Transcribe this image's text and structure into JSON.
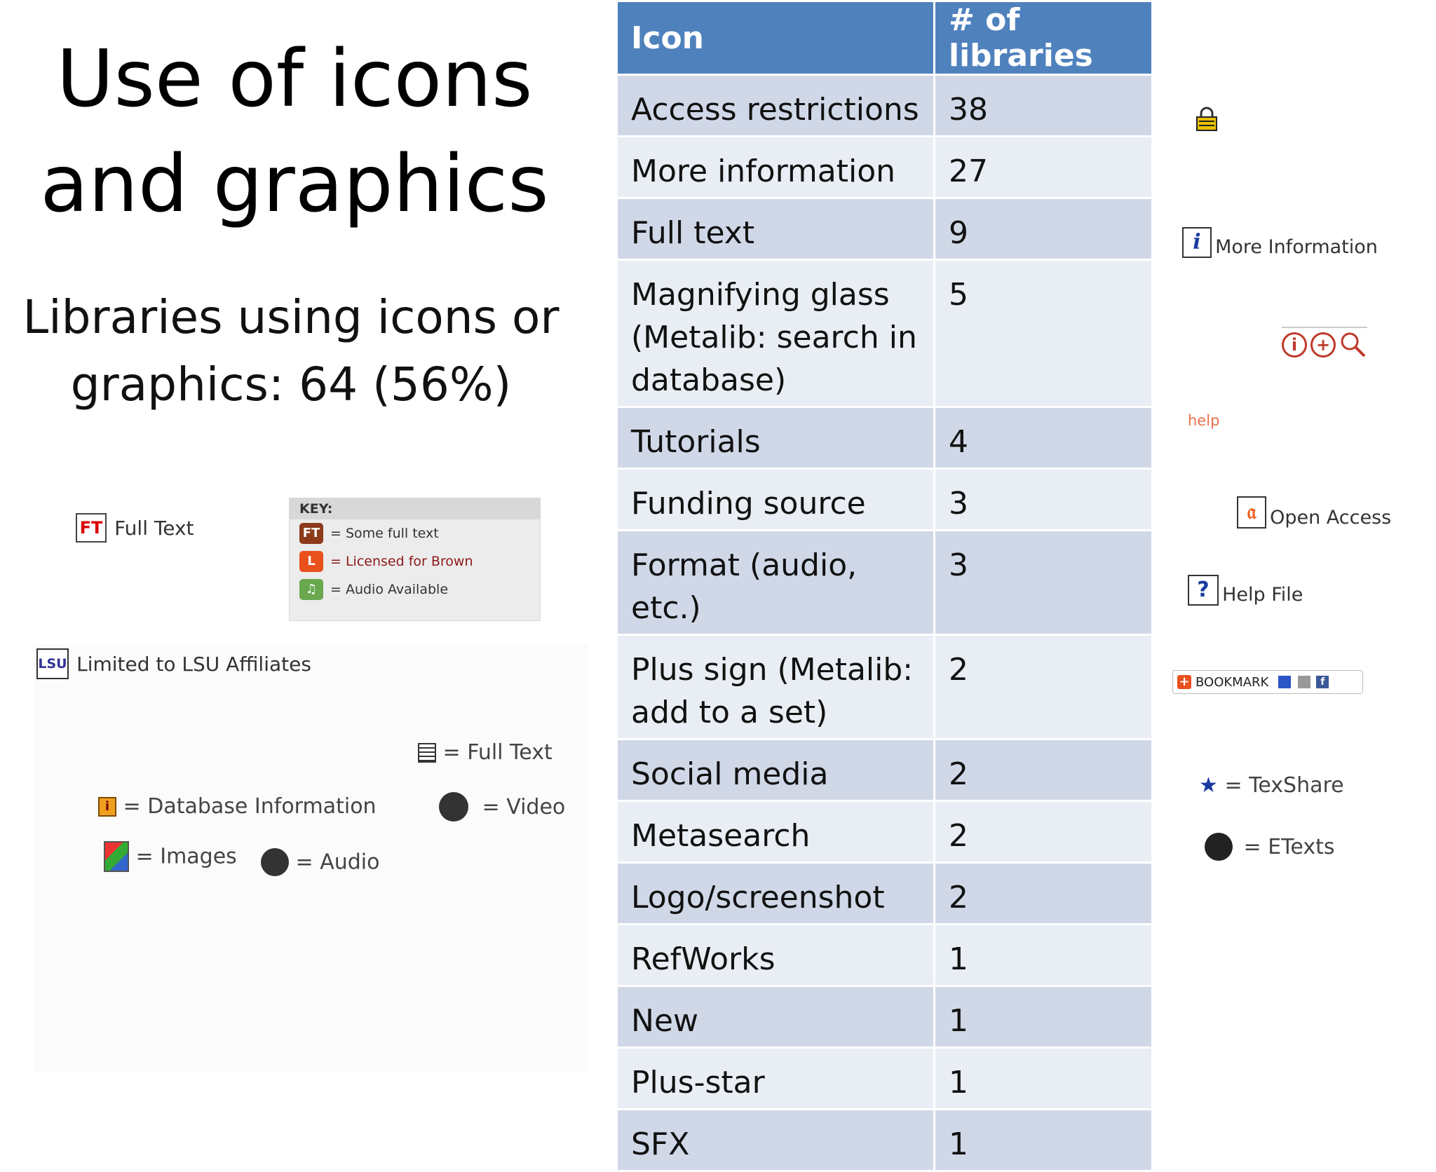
{
  "slide": {
    "title": "Use of icons and graphics",
    "subtitle": "Libraries using icons or graphics: 64 (56%)"
  },
  "table": {
    "headers": [
      "Icon",
      "# of libraries"
    ],
    "rows": [
      {
        "icon": "Access restrictions",
        "count": "38"
      },
      {
        "icon": "More information",
        "count": "27"
      },
      {
        "icon": "Full text",
        "count": "9"
      },
      {
        "icon": "Magnifying glass (Metalib: search in database)",
        "count": "5"
      },
      {
        "icon": "Tutorials",
        "count": "4"
      },
      {
        "icon": "Funding source",
        "count": "3"
      },
      {
        "icon": "Format (audio, etc.)",
        "count": "3"
      },
      {
        "icon": "Plus sign (Metalib: add to a set)",
        "count": "2"
      },
      {
        "icon": "Social media",
        "count": "2"
      },
      {
        "icon": "Metasearch",
        "count": "2"
      },
      {
        "icon": "Logo/screenshot",
        "count": "2"
      },
      {
        "icon": "RefWorks",
        "count": "1"
      },
      {
        "icon": "New",
        "count": "1"
      },
      {
        "icon": "Plus-star",
        "count": "1"
      },
      {
        "icon": "SFX",
        "count": "1"
      }
    ]
  },
  "examples_left": {
    "ft_icon_text": "FT",
    "ft_label": "Full Text",
    "key_title": "KEY:",
    "key_items": [
      {
        "badge": "FT",
        "label": "= Some full text",
        "color": "#8b3a1a"
      },
      {
        "badge": "L",
        "label": "= Licensed for Brown",
        "color": "#e8501c"
      },
      {
        "badge": "♫",
        "label": "= Audio Available",
        "color": "#6aa84f"
      }
    ],
    "lsu_icon_text": "LSU",
    "lsu_label": "Limited to LSU Affiliates",
    "fulltext_label": "= Full Text",
    "dbinfo_label": "= Database Information",
    "video_label": "= Video",
    "images_label": "= Images",
    "audio_label": "= Audio"
  },
  "examples_right": {
    "more_info_label": "More Information",
    "help_link": "help",
    "open_access_label": "Open Access",
    "help_file_label": "Help File",
    "bookmark_label": "BOOKMARK",
    "texshare_label": "= TexShare",
    "etexts_label": "= ETexts"
  },
  "colors": {
    "header_blue": "#4f81bd",
    "row_dark": "#d0d8e8",
    "row_light": "#e9edf4"
  }
}
